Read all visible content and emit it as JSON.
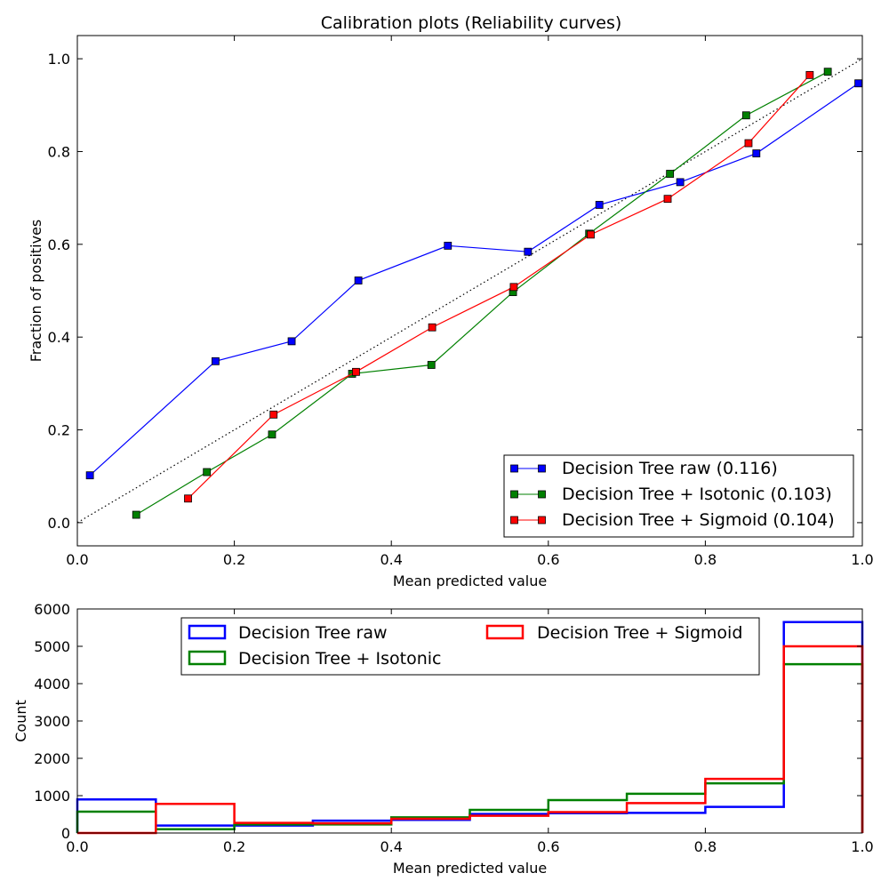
{
  "chart_data": [
    {
      "type": "line",
      "title": "Calibration plots  (Reliability curves)",
      "xlabel": "Mean predicted value",
      "ylabel": "Fraction of positives",
      "xlim": [
        0.0,
        1.0
      ],
      "ylim": [
        -0.05,
        1.05
      ],
      "xticks": [
        "0.0",
        "0.2",
        "0.4",
        "0.6",
        "0.8",
        "1.0"
      ],
      "yticks": [
        "0.0",
        "0.2",
        "0.4",
        "0.6",
        "0.8",
        "1.0"
      ],
      "grid": false,
      "legend_position": "lower-right",
      "reference_line": {
        "style": "dotted",
        "color": "#000000",
        "x": [
          0,
          1
        ],
        "y": [
          0,
          1
        ]
      },
      "series": [
        {
          "name": "Decision Tree raw (0.116)",
          "color": "#0000ff",
          "x": [
            0.016,
            0.176,
            0.273,
            0.358,
            0.472,
            0.574,
            0.665,
            0.768,
            0.865,
            0.995
          ],
          "y": [
            0.102,
            0.348,
            0.391,
            0.522,
            0.597,
            0.584,
            0.685,
            0.734,
            0.796,
            0.947
          ]
        },
        {
          "name": "Decision Tree + Isotonic (0.103)",
          "color": "#008000",
          "x": [
            0.075,
            0.165,
            0.248,
            0.35,
            0.451,
            0.555,
            0.652,
            0.755,
            0.852,
            0.956
          ],
          "y": [
            0.017,
            0.109,
            0.19,
            0.321,
            0.34,
            0.497,
            0.623,
            0.752,
            0.878,
            0.972
          ]
        },
        {
          "name": "Decision Tree + Sigmoid (0.104)",
          "color": "#ff0000",
          "x": [
            0.141,
            0.25,
            0.355,
            0.452,
            0.556,
            0.654,
            0.752,
            0.855,
            0.933
          ],
          "y": [
            0.052,
            0.233,
            0.325,
            0.421,
            0.508,
            0.621,
            0.698,
            0.818,
            0.965
          ]
        }
      ]
    },
    {
      "type": "bar",
      "style": "step-histogram",
      "xlabel": "Mean predicted value",
      "ylabel": "Count",
      "xlim": [
        0.0,
        1.0
      ],
      "ylim": [
        0,
        6000
      ],
      "xticks": [
        "0.0",
        "0.2",
        "0.4",
        "0.6",
        "0.8",
        "1.0"
      ],
      "yticks": [
        "0",
        "1000",
        "2000",
        "3000",
        "4000",
        "5000",
        "6000"
      ],
      "grid": false,
      "legend_position": "top-center",
      "legend_columns": 2,
      "bin_edges": [
        0,
        0.1,
        0.2,
        0.3,
        0.4,
        0.5,
        0.6,
        0.7,
        0.8,
        0.9,
        1.0
      ],
      "series": [
        {
          "name": "Decision Tree raw",
          "color": "#0000ff",
          "values": [
            900,
            200,
            200,
            330,
            350,
            510,
            530,
            540,
            700,
            5650
          ]
        },
        {
          "name": "Decision Tree + Isotonic",
          "color": "#008000",
          "values": [
            570,
            100,
            230,
            230,
            420,
            620,
            880,
            1050,
            1330,
            4520
          ]
        },
        {
          "name": "Decision Tree + Sigmoid",
          "color": "#ff0000",
          "values": [
            0,
            780,
            270,
            260,
            380,
            460,
            560,
            800,
            1450,
            5000
          ]
        }
      ]
    }
  ]
}
